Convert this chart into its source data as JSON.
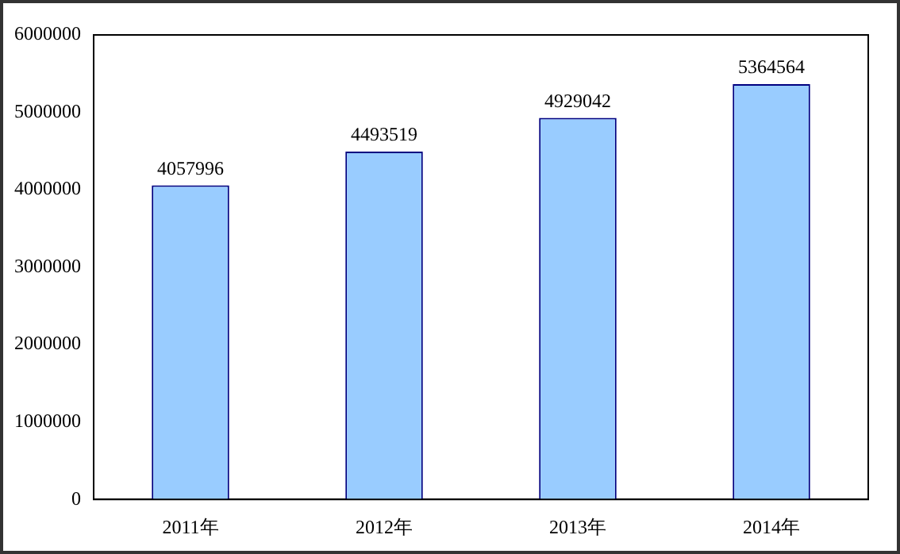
{
  "chart_data": {
    "type": "bar",
    "categories": [
      "2011年",
      "2012年",
      "2013年",
      "2014年"
    ],
    "values": [
      4057996,
      4493519,
      4929042,
      5364564
    ],
    "color": "#99ccff",
    "ylim": [
      0,
      6000000
    ],
    "yticks": [
      0,
      1000000,
      2000000,
      3000000,
      4000000,
      5000000,
      6000000
    ],
    "grid": false,
    "legend": false,
    "data_labels": true
  }
}
